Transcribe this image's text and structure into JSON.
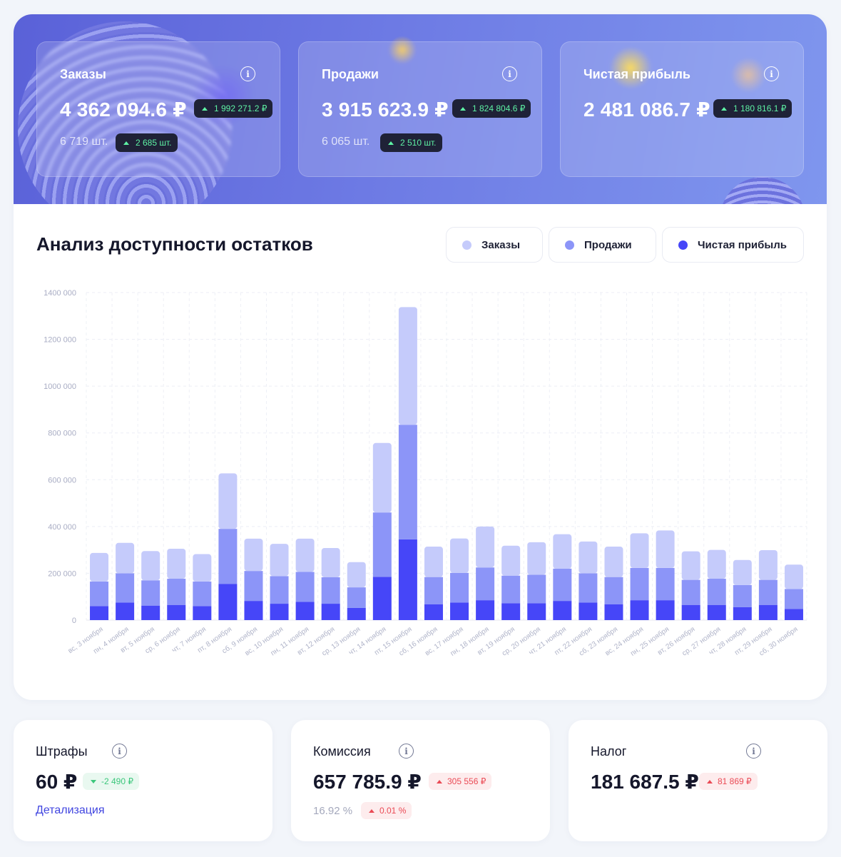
{
  "stats": [
    {
      "label": "Заказы",
      "value": "4 362 094.6 ₽",
      "delta": "1 992 271.2 ₽",
      "count": "6 719 шт.",
      "count_delta": "2 685 шт."
    },
    {
      "label": "Продажи",
      "value": "3 915 623.9 ₽",
      "delta": "1 824 804.6 ₽",
      "count": "6 065 шт.",
      "count_delta": "2 510 шт."
    },
    {
      "label": "Чистая прибыль",
      "value": "2 481 086.7 ₽",
      "delta": "1 180 816.1 ₽"
    }
  ],
  "chart_section": {
    "title": "Анализ доступности остатков",
    "legend": [
      {
        "label": "Заказы",
        "color": "#c5cbfb"
      },
      {
        "label": "Продажи",
        "color": "#8c95f8"
      },
      {
        "label": "Чистая прибыль",
        "color": "#4646f8"
      }
    ]
  },
  "chart_data": {
    "type": "bar",
    "stacked": true,
    "ylim": [
      0,
      1400000
    ],
    "yticks": [
      "1400 000",
      "1200 000",
      "1000 000",
      "800 000",
      "600 000",
      "400 000",
      "200 000",
      "0"
    ],
    "ytick_values": [
      1400000,
      1200000,
      1000000,
      800000,
      600000,
      400000,
      200000,
      0
    ],
    "categories": [
      "вс, 3 ноября",
      "пн, 4 ноября",
      "вт, 5 ноября",
      "ср, 6 ноября",
      "чт, 7 ноября",
      "пт, 8 ноября",
      "сб, 9 ноября",
      "вс, 10 ноября",
      "пн, 11 ноября",
      "вт, 12 ноября",
      "ср, 13 ноября",
      "чт, 14 ноября",
      "пт, 15 ноября",
      "сб, 16 ноября",
      "вс, 17 ноября",
      "пн, 18 ноября",
      "вт, 19 ноября",
      "ср, 20 ноября",
      "чт, 21 ноября",
      "пт, 22 ноября",
      "сб, 23 ноября",
      "вс, 24 ноября",
      "пн, 25 ноября",
      "вт, 26 ноября",
      "ср, 27 ноября",
      "чт, 28 ноября",
      "пт, 29 ноября",
      "сб, 30 ноября"
    ],
    "series": [
      {
        "name": "Чистая прибыль",
        "values": [
          60000,
          75000,
          62000,
          65000,
          60000,
          155000,
          82000,
          70000,
          78000,
          70000,
          52000,
          185000,
          345000,
          68000,
          75000,
          85000,
          72000,
          72000,
          82000,
          75000,
          68000,
          85000,
          85000,
          65000,
          65000,
          55000,
          65000,
          48000
        ]
      },
      {
        "name": "Продажи",
        "values": [
          105000,
          125000,
          108000,
          112000,
          105000,
          235000,
          128000,
          118000,
          128000,
          113000,
          88000,
          275000,
          490000,
          116000,
          127000,
          140000,
          118000,
          122000,
          138000,
          125000,
          116000,
          138000,
          138000,
          107000,
          112000,
          95000,
          107000,
          85000
        ]
      },
      {
        "name": "Заказы",
        "values": [
          122000,
          130000,
          125000,
          128000,
          117000,
          237000,
          138000,
          138000,
          142000,
          125000,
          108000,
          297000,
          503000,
          130000,
          147000,
          175000,
          128000,
          139000,
          147000,
          136000,
          130000,
          148000,
          160000,
          122000,
          123000,
          107000,
          127000,
          104000
        ]
      }
    ]
  },
  "bottom": [
    {
      "label": "Штрафы",
      "value": "60 ₽",
      "delta": "-2 490 ₽",
      "delta_dir": "down",
      "link": "Детализация"
    },
    {
      "label": "Комиссия",
      "value": "657 785.9 ₽",
      "delta": "305 556 ₽",
      "delta_dir": "up",
      "percent": "16.92 %",
      "percent_delta": "0.01 %"
    },
    {
      "label": "Налог",
      "value": "181 687.5 ₽",
      "delta": "81 869 ₽",
      "delta_dir": "up"
    }
  ]
}
